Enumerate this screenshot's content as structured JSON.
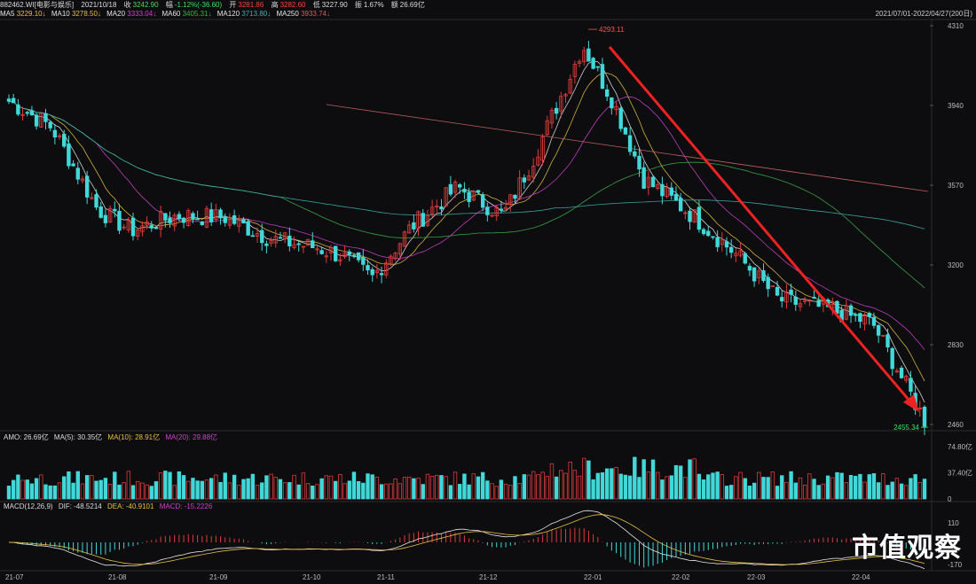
{
  "header": {
    "code": "882462.WI[电影与娱乐]",
    "date": "2021/10/18",
    "close_label": "收",
    "close": "3242.90",
    "change_label": "幅",
    "change": "-1.12%(-36.60)",
    "open_label": "开",
    "open": "3281.86",
    "high_label": "高",
    "high": "3282.60",
    "low_label": "低",
    "low": "3227.90",
    "amp_label": "振",
    "amp": "1.67%",
    "amount_label": "额",
    "amount": "26.69亿"
  },
  "ma_legend": [
    {
      "label": "MA5",
      "value": "3229.10↓",
      "color": "#e6e6e6"
    },
    {
      "label": "MA10",
      "value": "3278.50↓",
      "color": "#e8c040"
    },
    {
      "label": "MA20",
      "value": "3333.04↓",
      "color": "#d040d0"
    },
    {
      "label": "MA60",
      "value": "3405.31↓",
      "color": "#3cb048"
    },
    {
      "label": "MA120",
      "value": "3713.80↓",
      "color": "#40b0b0"
    },
    {
      "label": "MA250",
      "value": "3933.74↓",
      "color": "#c06060"
    }
  ],
  "date_range": "2021/07/01-2022/04/27(200日)",
  "price_axis": [
    "4310",
    "3940",
    "3570",
    "3200",
    "2830",
    "2460"
  ],
  "max_label": "4293.11",
  "min_label": "2455.34",
  "volume_panel": {
    "title": "AMO: 26.69亿",
    "ma5": "MA(5): 30.35亿",
    "ma10": "MA(10): 28.91亿",
    "ma20": "MA(20): 29.88亿",
    "axis": [
      "74.80亿",
      "37.40亿",
      "0"
    ]
  },
  "macd_panel": {
    "title": "MACD(12,26,9)",
    "dif": "DIF: -48.5214",
    "dea": "DEA: -40.9101",
    "macd": "MACD: -15.2226",
    "axis": [
      "110",
      "-170"
    ]
  },
  "date_axis": [
    "21-07",
    "21-08",
    "21-09",
    "21-10",
    "21-11",
    "21-12",
    "22-01",
    "22-02",
    "22-03",
    "22-04"
  ],
  "watermark": "市值观察",
  "colors": {
    "up": "#e03a3a",
    "down": "#40d8d8",
    "trend": "#ee2222"
  },
  "chart_data": {
    "type": "candlestick",
    "title": "882462.WI 电影与娱乐",
    "ylim": [
      2460,
      4310
    ],
    "x_range": [
      "2021/07/01",
      "2022/04/27"
    ],
    "trading_days": 200,
    "high": 4293.11,
    "low": 2455.34,
    "close_series_approx": [
      {
        "date": "2021-07-01",
        "close": 3960
      },
      {
        "date": "2021-07-15",
        "close": 3840
      },
      {
        "date": "2021-07-30",
        "close": 3460
      },
      {
        "date": "2021-08-10",
        "close": 3360
      },
      {
        "date": "2021-08-25",
        "close": 3430
      },
      {
        "date": "2021-09-10",
        "close": 3420
      },
      {
        "date": "2021-09-25",
        "close": 3320
      },
      {
        "date": "2021-10-10",
        "close": 3280
      },
      {
        "date": "2021-10-18",
        "close": 3242.9
      },
      {
        "date": "2021-10-28",
        "close": 3140
      },
      {
        "date": "2021-11-10",
        "close": 3380
      },
      {
        "date": "2021-11-25",
        "close": 3560
      },
      {
        "date": "2021-12-10",
        "close": 3430
      },
      {
        "date": "2021-12-20",
        "close": 3700
      },
      {
        "date": "2021-12-31",
        "close": 4050
      },
      {
        "date": "2022-01-05",
        "close": 4220
      },
      {
        "date": "2022-01-15",
        "close": 3960
      },
      {
        "date": "2022-01-25",
        "close": 3600
      },
      {
        "date": "2022-02-10",
        "close": 3430
      },
      {
        "date": "2022-02-25",
        "close": 3240
      },
      {
        "date": "2022-03-10",
        "close": 3040
      },
      {
        "date": "2022-03-25",
        "close": 3000
      },
      {
        "date": "2022-04-10",
        "close": 2930
      },
      {
        "date": "2022-04-27",
        "close": 2480
      }
    ],
    "moving_averages": [
      "MA5",
      "MA10",
      "MA20",
      "MA60",
      "MA120",
      "MA250"
    ],
    "annotation": "red downward trend arrow from 2022-01 peak to 2022-04 low"
  }
}
